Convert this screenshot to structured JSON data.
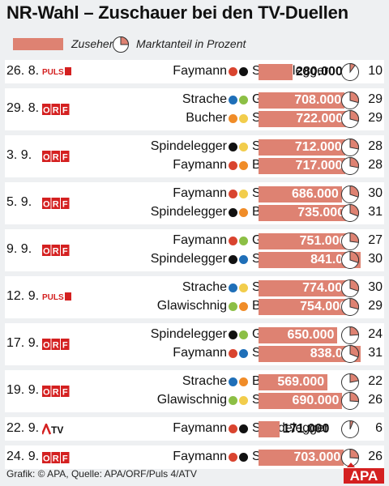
{
  "title": "NR-Wahl – Zuschauer bei den TV-Duellen",
  "legend": {
    "bar_label": "Zuseher",
    "pie_label": "Marktanteil in Prozent"
  },
  "footer": {
    "source": "Grafik: © APA, Quelle: APA/ORF/Puls 4/ATV",
    "logo_text": "APA"
  },
  "colors": {
    "bar": "#de8272",
    "pie_fill": "#de8272",
    "band": "#eef0f2",
    "party": {
      "SPÖ": "#d9442f",
      "ÖVP": "#111111",
      "FPÖ": "#1f6fb8",
      "Grüne": "#8cbf45",
      "BZÖ": "#f08c28",
      "Team Stronach": "#f2cd4c"
    },
    "logos": {
      "ORF": "#d42020",
      "PULS 4": "#d42020",
      "ATV": "#d42020"
    }
  },
  "chart_data": {
    "type": "bar",
    "title": "NR-Wahl – Zuschauer bei den TV-Duellen",
    "xlabel": "",
    "ylabel": "",
    "value_unit": "Zuseher",
    "share_unit": "Marktanteil in Prozent",
    "ylim": [
      0,
      841000
    ],
    "grid": false,
    "legend_placement": "top-left",
    "groups": [
      {
        "date": "26. 8.",
        "channel": "PULS 4",
        "duels": [
          {
            "left": "Faymann",
            "left_party": "SPÖ",
            "right": "Spindelegger",
            "right_party": "ÖVP",
            "viewers": 280000,
            "viewers_label": "280.000",
            "share": 10
          }
        ]
      },
      {
        "date": "29. 8.",
        "channel": "ORF",
        "duels": [
          {
            "left": "Strache",
            "left_party": "FPÖ",
            "right": "Glawischnig",
            "right_party": "Grüne",
            "viewers": 708000,
            "viewers_label": "708.000",
            "share": 29
          },
          {
            "left": "Bucher",
            "left_party": "BZÖ",
            "right": "Stronach",
            "right_party": "Team Stronach",
            "viewers": 722000,
            "viewers_label": "722.000",
            "share": 29
          }
        ]
      },
      {
        "date": "3. 9.",
        "channel": "ORF",
        "duels": [
          {
            "left": "Spindelegger",
            "left_party": "ÖVP",
            "right": "Stronach",
            "right_party": "Team Stronach",
            "viewers": 712000,
            "viewers_label": "712.000",
            "share": 28
          },
          {
            "left": "Faymann",
            "left_party": "SPÖ",
            "right": "Bucher",
            "right_party": "BZÖ",
            "viewers": 717000,
            "viewers_label": "717.000",
            "share": 28
          }
        ]
      },
      {
        "date": "5. 9.",
        "channel": "ORF",
        "duels": [
          {
            "left": "Faymann",
            "left_party": "SPÖ",
            "right": "Stronach",
            "right_party": "Team Stronach",
            "viewers": 686000,
            "viewers_label": "686.000",
            "share": 30
          },
          {
            "left": "Spindelegger",
            "left_party": "ÖVP",
            "right": "Bucher",
            "right_party": "BZÖ",
            "viewers": 735000,
            "viewers_label": "735.000",
            "share": 31
          }
        ]
      },
      {
        "date": "9. 9.",
        "channel": "ORF",
        "duels": [
          {
            "left": "Faymann",
            "left_party": "SPÖ",
            "right": "Glawischnig",
            "right_party": "Grüne",
            "viewers": 751000,
            "viewers_label": "751.000",
            "share": 27
          },
          {
            "left": "Spindelegger",
            "left_party": "ÖVP",
            "right": "Strache",
            "right_party": "FPÖ",
            "viewers": 841000,
            "viewers_label": "841.000",
            "share": 30
          }
        ]
      },
      {
        "date": "12. 9.",
        "channel": "PULS 4",
        "duels": [
          {
            "left": "Strache",
            "left_party": "FPÖ",
            "right": "Stronach",
            "right_party": "Team Stronach",
            "viewers": 774000,
            "viewers_label": "774.000",
            "share": 30
          },
          {
            "left": "Glawischnig",
            "left_party": "Grüne",
            "right": "Bucher",
            "right_party": "BZÖ",
            "viewers": 754000,
            "viewers_label": "754.000",
            "share": 29
          }
        ]
      },
      {
        "date": "17. 9.",
        "channel": "ORF",
        "duels": [
          {
            "left": "Spindelegger",
            "left_party": "ÖVP",
            "right": "Glawischnig",
            "right_party": "Grüne",
            "viewers": 650000,
            "viewers_label": "650.000",
            "share": 24
          },
          {
            "left": "Faymann",
            "left_party": "SPÖ",
            "right": "Strache",
            "right_party": "FPÖ",
            "viewers": 838000,
            "viewers_label": "838.000",
            "share": 31
          }
        ]
      },
      {
        "date": "19. 9.",
        "channel": "ORF",
        "duels": [
          {
            "left": "Strache",
            "left_party": "FPÖ",
            "right": "Bucher",
            "right_party": "BZÖ",
            "viewers": 569000,
            "viewers_label": "569.000",
            "share": 22
          },
          {
            "left": "Glawischnig",
            "left_party": "Grüne",
            "right": "Stronach",
            "right_party": "Team Stronach",
            "viewers": 690000,
            "viewers_label": "690.000",
            "share": 26
          }
        ]
      },
      {
        "date": "22. 9.",
        "channel": "ATV",
        "duels": [
          {
            "left": "Faymann",
            "left_party": "SPÖ",
            "right": "Spindelegger",
            "right_party": "ÖVP",
            "viewers": 171000,
            "viewers_label": "171.000",
            "share": 6
          }
        ]
      },
      {
        "date": "24. 9.",
        "channel": "ORF",
        "duels": [
          {
            "left": "Faymann",
            "left_party": "SPÖ",
            "right": "Spindelegger",
            "right_party": "ÖVP",
            "viewers": 703000,
            "viewers_label": "703.000",
            "share": 26
          }
        ]
      }
    ]
  }
}
